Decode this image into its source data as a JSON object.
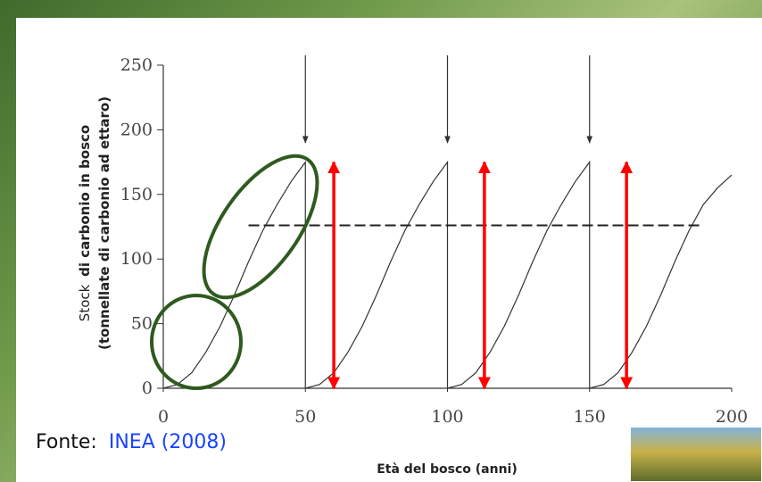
{
  "chart_data": {
    "type": "line",
    "y_label": [
      "Stock",
      "di carbonio in bosco",
      "(tonnellate di carbonio ad ettaro)"
    ],
    "x_label": "Età del bosco (anni)",
    "source_label": "Fonte:",
    "source_link": "INEA (2008)",
    "xlim": [
      0,
      200
    ],
    "ylim": [
      0,
      250
    ],
    "xticks": [
      0,
      50,
      100,
      150,
      200
    ],
    "yticks": [
      0,
      50,
      100,
      150,
      200,
      250
    ],
    "series": [
      {
        "color": "#333333",
        "dashed": false,
        "x": [
          0,
          5,
          10,
          15,
          20,
          25,
          30,
          35,
          40,
          45,
          50,
          50,
          55,
          60,
          65,
          70,
          75,
          80,
          85,
          90,
          95,
          100,
          100,
          105,
          110,
          115,
          120,
          125,
          130,
          135,
          140,
          145,
          150,
          150,
          155,
          160,
          165,
          170,
          175,
          180,
          185,
          190,
          195,
          200
        ],
        "values": [
          0,
          3,
          12,
          28,
          48,
          72,
          98,
          122,
          142,
          160,
          175,
          0,
          3,
          12,
          28,
          48,
          72,
          98,
          122,
          142,
          160,
          175,
          0,
          3,
          12,
          28,
          48,
          72,
          98,
          122,
          142,
          160,
          175,
          0,
          3,
          12,
          28,
          48,
          72,
          98,
          122,
          142,
          155,
          165
        ]
      },
      {
        "color": "#222222",
        "dashed": true,
        "x": [
          30,
          190
        ],
        "values": [
          126,
          126
        ]
      }
    ],
    "top_arrows_x": [
      50,
      100,
      150
    ],
    "red_arrows": {
      "color": "#ff0000",
      "x": [
        60,
        113,
        163
      ],
      "from": 0,
      "to": 175
    }
  }
}
